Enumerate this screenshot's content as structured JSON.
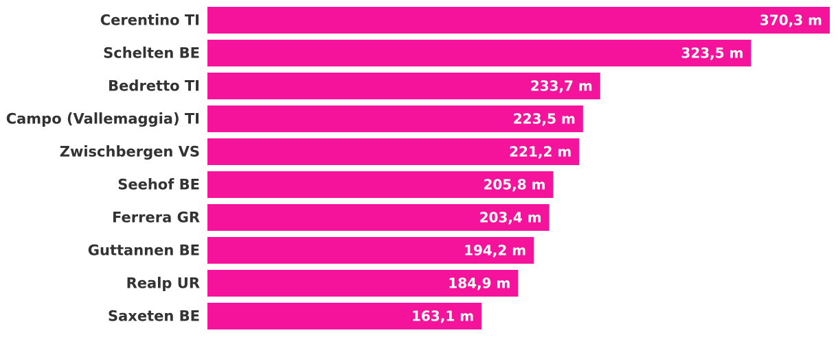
{
  "chart_data": {
    "type": "bar",
    "orientation": "horizontal",
    "categories": [
      "Cerentino TI",
      "Schelten BE",
      "Bedretto TI",
      "Campo (Vallemaggia) TI",
      "Zwischbergen VS",
      "Seehof BE",
      "Ferrera GR",
      "Guttannen BE",
      "Realp UR",
      "Saxeten BE"
    ],
    "values": [
      370.3,
      323.5,
      233.7,
      223.5,
      221.2,
      205.8,
      203.4,
      194.2,
      184.9,
      163.1
    ],
    "value_labels": [
      "370,3 m",
      "323,5 m",
      "233,7 m",
      "223,5 m",
      "221,2 m",
      "205,8 m",
      "203,4 m",
      "194,2 m",
      "184,9 m",
      "163,1 m"
    ],
    "xlim": [
      0,
      370.3
    ],
    "grid": false,
    "legend": "none",
    "colors": {
      "bar": "#f5139b",
      "category_text": "#333333",
      "value_text": "#ffffff"
    }
  }
}
